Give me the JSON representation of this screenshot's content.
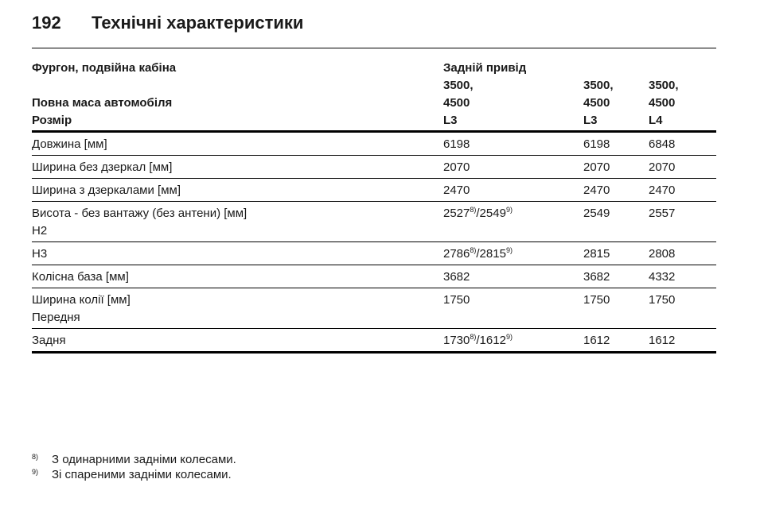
{
  "header": {
    "page": "192",
    "title": "Технічні характеристики"
  },
  "table": {
    "group": {
      "label": "Фургон, подвійна кабіна",
      "value": "Задній привід"
    },
    "mass": {
      "label": "Повна маса автомобіля",
      "values": [
        [
          "3500,",
          "4500"
        ],
        [
          "3500,",
          "4500"
        ],
        [
          "3500,",
          "4500"
        ]
      ]
    },
    "size": {
      "label": "Розмір",
      "values": [
        "L3",
        "L3",
        "L4"
      ]
    },
    "rows": [
      {
        "label": [
          "Довжина [мм]"
        ],
        "values": [
          "6198",
          "6198",
          "6848"
        ]
      },
      {
        "label": [
          "Ширина без дзеркал [мм]"
        ],
        "values": [
          "2070",
          "2070",
          "2070"
        ]
      },
      {
        "label": [
          "Ширина з дзеркалами [мм]"
        ],
        "values": [
          "2470",
          "2470",
          "2470"
        ]
      },
      {
        "label": [
          "Висота - без вантажу (без антени) [мм]",
          "H2"
        ],
        "values": [
          [
            {
              "t": "2527"
            },
            {
              "sup": "8)"
            },
            {
              "t": "/2549"
            },
            {
              "sup": "9)"
            }
          ],
          "2549",
          "2557"
        ]
      },
      {
        "label": [
          "H3"
        ],
        "values": [
          [
            {
              "t": "2786"
            },
            {
              "sup": "8)"
            },
            {
              "t": "/2815"
            },
            {
              "sup": "9)"
            }
          ],
          "2815",
          "2808"
        ]
      },
      {
        "label": [
          "Колісна база [мм]"
        ],
        "values": [
          "3682",
          "3682",
          "4332"
        ]
      },
      {
        "label": [
          "Ширина колії [мм]",
          "Передня"
        ],
        "values": [
          "1750",
          "1750",
          "1750"
        ]
      },
      {
        "label": [
          "Задня"
        ],
        "values": [
          [
            {
              "t": "1730"
            },
            {
              "sup": "8)"
            },
            {
              "t": "/1612"
            },
            {
              "sup": "9)"
            }
          ],
          "1612",
          "1612"
        ]
      }
    ]
  },
  "footnotes": [
    {
      "mark": "8)",
      "text": "З одинарними задніми колесами."
    },
    {
      "mark": "9)",
      "text": "Зі спареними задніми колесами."
    }
  ]
}
